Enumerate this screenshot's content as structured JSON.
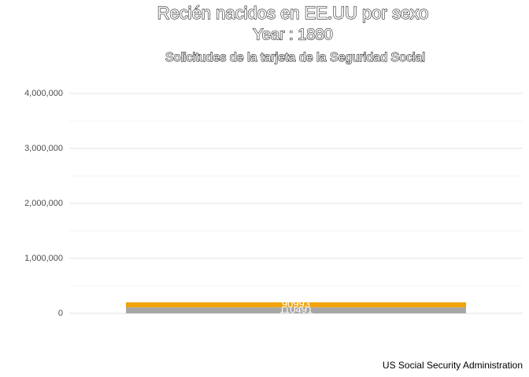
{
  "chart_data": {
    "type": "stacked_bar",
    "title": "Recién nacidos en EE.UU por sexo",
    "subtitle": "Year : 1880",
    "subtitle2": "Solicitudes de la tarjeta de la Seguridad Social",
    "caption": "US Social Security Administration",
    "categories": [
      null
    ],
    "series": [
      {
        "color": "#a6a6a6",
        "values": [
          110491
        ]
      },
      {
        "color": "#f0a30a",
        "values": [
          90993
        ]
      }
    ],
    "ylim": [
      -300000,
      4200000
    ],
    "yticks": [
      {
        "value": 0,
        "label": "0"
      },
      {
        "value": 1000000,
        "label": "1,000,000"
      },
      {
        "value": 2000000,
        "label": "2,000,000"
      },
      {
        "value": 3000000,
        "label": "3,000,000"
      },
      {
        "value": 4000000,
        "label": "4,000,000"
      }
    ],
    "grid": true
  }
}
